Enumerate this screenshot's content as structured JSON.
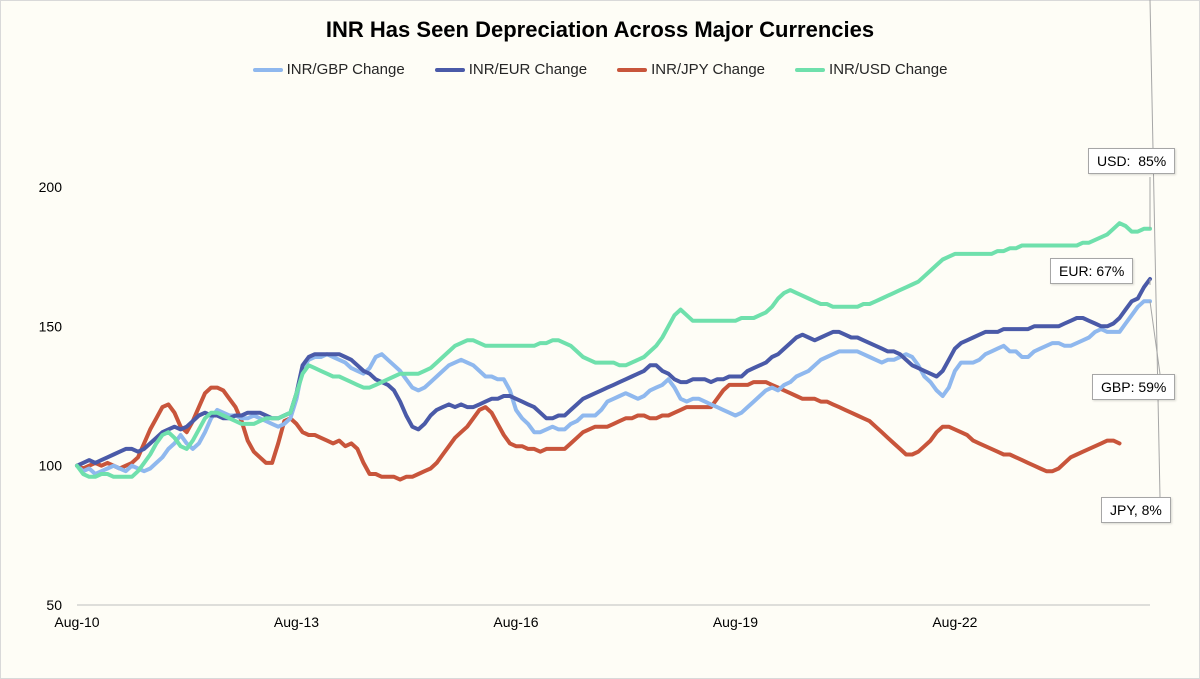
{
  "chart_data": {
    "type": "line",
    "title": "INR Has Seen Depreciation Across Major Currencies",
    "xlabel": "",
    "ylabel": "",
    "ylim": [
      50,
      200
    ],
    "yticks": [
      "50",
      "100",
      "150",
      "200"
    ],
    "x_tick_labels": [
      "Aug-10",
      "Aug-13",
      "Aug-16",
      "Aug-19",
      "Aug-22"
    ],
    "x_tick_index": [
      0,
      36,
      72,
      108,
      144
    ],
    "legend_position": "top",
    "grid": false,
    "series": [
      {
        "name": "INR/GBP Change",
        "color": "#8fb8ee",
        "values": [
          100,
          98,
          99,
          97,
          98,
          99,
          100,
          99,
          98,
          100,
          99,
          98,
          99,
          101,
          103,
          106,
          108,
          111,
          108,
          106,
          108,
          112,
          117,
          120,
          119,
          118,
          118,
          117,
          117,
          118,
          117,
          116,
          115,
          114,
          115,
          117,
          124,
          135,
          138,
          139,
          139,
          140,
          139,
          138,
          137,
          135,
          134,
          133,
          135,
          139,
          140,
          138,
          136,
          134,
          131,
          128,
          127,
          128,
          130,
          132,
          134,
          136,
          137,
          138,
          137,
          136,
          134,
          132,
          132,
          131,
          131,
          127,
          120,
          117,
          115,
          112,
          112,
          113,
          114,
          113,
          113,
          115,
          116,
          118,
          118,
          118,
          120,
          123,
          124,
          125,
          126,
          125,
          124,
          125,
          127,
          128,
          129,
          131,
          128,
          124,
          123,
          124,
          124,
          123,
          122,
          121,
          120,
          119,
          118,
          119,
          121,
          123,
          125,
          127,
          128,
          127,
          129,
          130,
          132,
          133,
          134,
          136,
          138,
          139,
          140,
          141,
          141,
          141,
          141,
          140,
          139,
          138,
          137,
          138,
          138,
          139,
          140,
          139,
          136,
          132,
          130,
          127,
          125,
          128,
          134,
          137,
          137,
          137,
          138,
          140,
          141,
          142,
          143,
          141,
          141,
          139,
          139,
          141,
          142,
          143,
          144,
          144,
          143,
          143,
          144,
          145,
          146,
          148,
          149,
          148,
          148,
          148,
          151,
          154,
          157,
          159,
          159
        ]
      },
      {
        "name": "INR/EUR Change",
        "color": "#4a5aa8",
        "values": [
          100,
          101,
          102,
          101,
          102,
          103,
          104,
          105,
          106,
          106,
          105,
          106,
          108,
          110,
          112,
          113,
          114,
          113,
          114,
          116,
          118,
          119,
          118,
          118,
          117,
          117,
          118,
          118,
          119,
          119,
          119,
          118,
          117,
          117,
          118,
          119,
          126,
          136,
          139,
          140,
          140,
          140,
          140,
          140,
          139,
          138,
          136,
          134,
          133,
          131,
          130,
          129,
          127,
          123,
          118,
          114,
          113,
          115,
          118,
          120,
          121,
          122,
          121,
          122,
          121,
          121,
          122,
          123,
          124,
          124,
          125,
          125,
          124,
          123,
          122,
          121,
          119,
          117,
          117,
          118,
          118,
          120,
          122,
          124,
          125,
          126,
          127,
          128,
          129,
          130,
          131,
          132,
          133,
          134,
          136,
          136,
          134,
          133,
          131,
          130,
          130,
          131,
          131,
          131,
          130,
          131,
          131,
          132,
          132,
          132,
          134,
          135,
          136,
          137,
          139,
          140,
          142,
          144,
          146,
          147,
          146,
          145,
          146,
          147,
          148,
          148,
          147,
          146,
          146,
          145,
          144,
          143,
          142,
          141,
          141,
          140,
          138,
          136,
          135,
          134,
          133,
          132,
          134,
          138,
          142,
          144,
          145,
          146,
          147,
          148,
          148,
          148,
          149,
          149,
          149,
          149,
          149,
          150,
          150,
          150,
          150,
          150,
          151,
          152,
          153,
          153,
          152,
          151,
          150,
          150,
          151,
          153,
          156,
          159,
          160,
          164,
          167
        ]
      },
      {
        "name": "INR/JPY Change",
        "color": "#c8553b",
        "values": [
          100,
          99,
          100,
          101,
          100,
          101,
          100,
          99,
          100,
          101,
          103,
          108,
          113,
          117,
          121,
          122,
          119,
          114,
          112,
          116,
          121,
          126,
          128,
          128,
          127,
          124,
          121,
          116,
          109,
          105,
          103,
          101,
          101,
          108,
          116,
          117,
          115,
          112,
          111,
          111,
          110,
          109,
          108,
          109,
          107,
          108,
          106,
          101,
          97,
          97,
          96,
          96,
          96,
          95,
          96,
          96,
          97,
          98,
          99,
          101,
          104,
          107,
          110,
          112,
          114,
          117,
          120,
          121,
          119,
          115,
          111,
          108,
          107,
          107,
          106,
          106,
          105,
          106,
          106,
          106,
          106,
          108,
          110,
          112,
          113,
          114,
          114,
          114,
          115,
          116,
          117,
          117,
          118,
          118,
          117,
          117,
          118,
          118,
          119,
          120,
          121,
          121,
          121,
          121,
          121,
          124,
          127,
          129,
          129,
          129,
          129,
          130,
          130,
          130,
          129,
          128,
          127,
          126,
          125,
          124,
          124,
          124,
          123,
          123,
          122,
          121,
          120,
          119,
          118,
          117,
          116,
          114,
          112,
          110,
          108,
          106,
          104,
          104,
          105,
          107,
          109,
          112,
          114,
          114,
          113,
          112,
          111,
          109,
          108,
          107,
          106,
          105,
          104,
          104,
          103,
          102,
          101,
          100,
          99,
          98,
          98,
          99,
          101,
          103,
          104,
          105,
          106,
          107,
          108,
          109,
          109,
          108
        ]
      },
      {
        "name": "INR/USD Change",
        "color": "#6fe0ac",
        "values": [
          100,
          97,
          96,
          96,
          97,
          97,
          96,
          96,
          96,
          96,
          98,
          101,
          104,
          108,
          111,
          112,
          110,
          107,
          106,
          109,
          113,
          117,
          119,
          119,
          118,
          117,
          116,
          115,
          115,
          115,
          116,
          117,
          117,
          117,
          118,
          119,
          126,
          133,
          136,
          135,
          134,
          133,
          132,
          132,
          131,
          130,
          129,
          128,
          128,
          129,
          130,
          131,
          132,
          133,
          133,
          133,
          133,
          134,
          135,
          137,
          139,
          141,
          143,
          144,
          145,
          145,
          144,
          143,
          143,
          143,
          143,
          143,
          143,
          143,
          143,
          143,
          144,
          144,
          145,
          145,
          144,
          143,
          141,
          139,
          138,
          137,
          137,
          137,
          137,
          136,
          136,
          137,
          138,
          139,
          141,
          143,
          146,
          150,
          154,
          156,
          154,
          152,
          152,
          152,
          152,
          152,
          152,
          152,
          152,
          153,
          153,
          153,
          154,
          155,
          157,
          160,
          162,
          163,
          162,
          161,
          160,
          159,
          158,
          158,
          157,
          157,
          157,
          157,
          157,
          158,
          158,
          159,
          160,
          161,
          162,
          163,
          164,
          165,
          166,
          168,
          170,
          172,
          174,
          175,
          176,
          176,
          176,
          176,
          176,
          176,
          176,
          177,
          177,
          178,
          178,
          179,
          179,
          179,
          179,
          179,
          179,
          179,
          179,
          179,
          179,
          180,
          180,
          181,
          182,
          183,
          185,
          187,
          186,
          184,
          184,
          185,
          185
        ]
      }
    ],
    "annotations": [
      {
        "series": "INR/USD Change",
        "text": "USD:  85%"
      },
      {
        "series": "INR/EUR Change",
        "text": "EUR: 67%"
      },
      {
        "series": "INR/GBP Change",
        "text": "GBP: 59%"
      },
      {
        "series": "INR/JPY Change",
        "text": "JPY, 8%"
      }
    ]
  }
}
